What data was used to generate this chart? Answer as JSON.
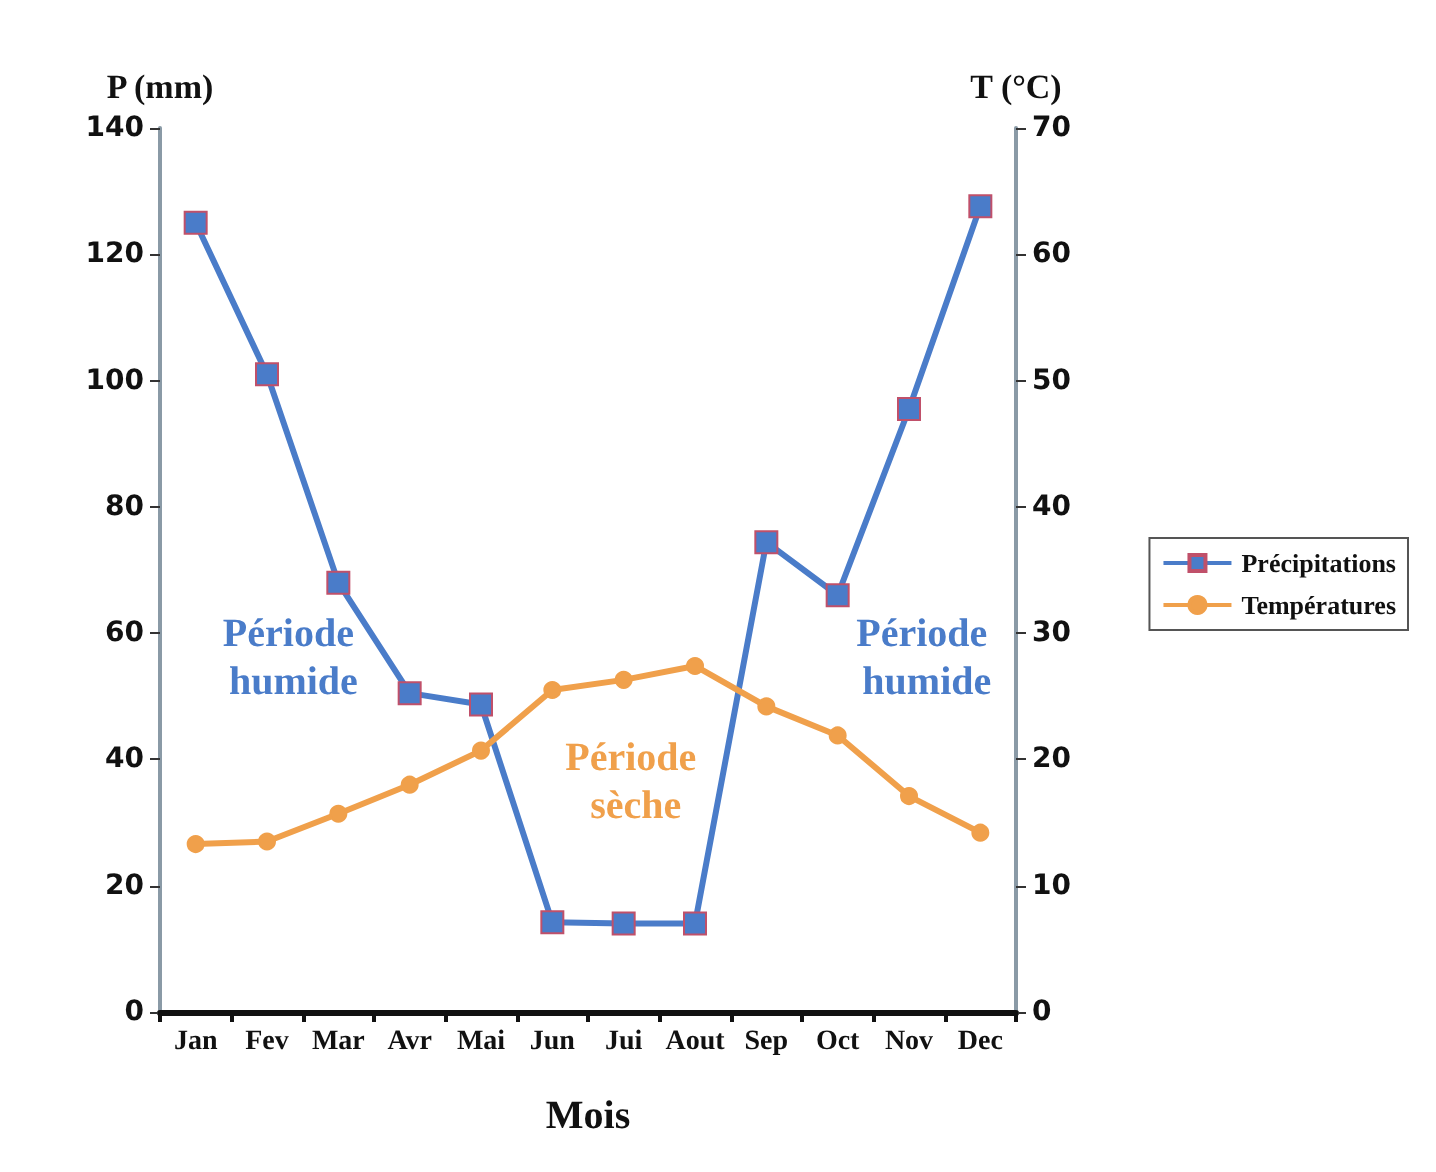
{
  "chart_data": {
    "type": "line",
    "xlabel": "Mois",
    "ylabel": "P (mm)",
    "y2label": "T (°C)",
    "categories": [
      "Jan",
      "Fev",
      "Mar",
      "Avr",
      "Mai",
      "Jun",
      "Jui",
      "Aout",
      "Sep",
      "Oct",
      "Nov",
      "Dec"
    ],
    "series": [
      {
        "name": "Précipitations",
        "color": "#4a7cc9",
        "marker": "square",
        "values": [
          125,
          101,
          68,
          50.5,
          48.7,
          14.2,
          14,
          14,
          74.4,
          66,
          95.5,
          127.6
        ]
      },
      {
        "name": "Températures",
        "color": "#f0a04b",
        "marker": "circle",
        "axis": "y2",
        "values": [
          13.3,
          13.5,
          15.7,
          18,
          20.7,
          25.5,
          26.3,
          27.4,
          24.2,
          21.9,
          17.1,
          14.2
        ]
      }
    ],
    "ylim": [
      0,
      140
    ],
    "yticks": [
      0,
      20,
      40,
      60,
      80,
      100,
      120,
      140
    ],
    "y2lim": [
      0,
      70
    ],
    "y2ticks": [
      0,
      10,
      20,
      30,
      40,
      50,
      60,
      70
    ],
    "annotations": [
      "Période humide",
      "Période sèche",
      "Période humide"
    ],
    "legend": "right",
    "grid": false
  }
}
